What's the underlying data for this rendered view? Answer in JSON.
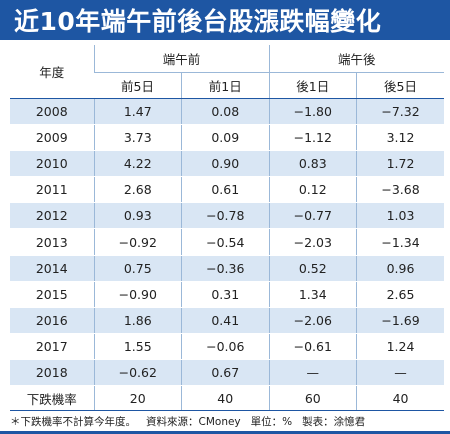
{
  "title": "近10年端午前後台股漲跌幅變化",
  "header": {
    "year_label": "年度",
    "groups": [
      "端午前",
      "端午後"
    ],
    "columns": [
      "前5日",
      "前1日",
      "後1日",
      "後5日"
    ]
  },
  "rows": [
    {
      "year": "2008",
      "values": [
        "1.47",
        "0.08",
        "−1.80",
        "−7.32"
      ]
    },
    {
      "year": "2009",
      "values": [
        "3.73",
        "0.09",
        "−1.12",
        "3.12"
      ]
    },
    {
      "year": "2010",
      "values": [
        "4.22",
        "0.90",
        "0.83",
        "1.72"
      ]
    },
    {
      "year": "2011",
      "values": [
        "2.68",
        "0.61",
        "0.12",
        "−3.68"
      ]
    },
    {
      "year": "2012",
      "values": [
        "0.93",
        "−0.78",
        "−0.77",
        "1.03"
      ]
    },
    {
      "year": "2013",
      "values": [
        "−0.92",
        "−0.54",
        "−2.03",
        "−1.34"
      ]
    },
    {
      "year": "2014",
      "values": [
        "0.75",
        "−0.36",
        "0.52",
        "0.96"
      ]
    },
    {
      "year": "2015",
      "values": [
        "−0.90",
        "0.31",
        "1.34",
        "2.65"
      ]
    },
    {
      "year": "2016",
      "values": [
        "1.86",
        "0.41",
        "−2.06",
        "−1.69"
      ]
    },
    {
      "year": "2017",
      "values": [
        "1.55",
        "−0.06",
        "−0.61",
        "1.24"
      ]
    },
    {
      "year": "2018",
      "values": [
        "−0.62",
        "0.67",
        "—",
        "—"
      ]
    }
  ],
  "summary": {
    "label": "下跌機率",
    "values": [
      "20",
      "40",
      "60",
      "40"
    ]
  },
  "footnote": {
    "note": "＊下跌機率不計算今年度。",
    "source": "資料來源：CMoney",
    "unit": "單位：%",
    "maker": "製表：涂憶君"
  },
  "colors": {
    "title_bg": "#1e56a3",
    "stripe": "#d9e6f4",
    "rule": "#1e56a3"
  }
}
